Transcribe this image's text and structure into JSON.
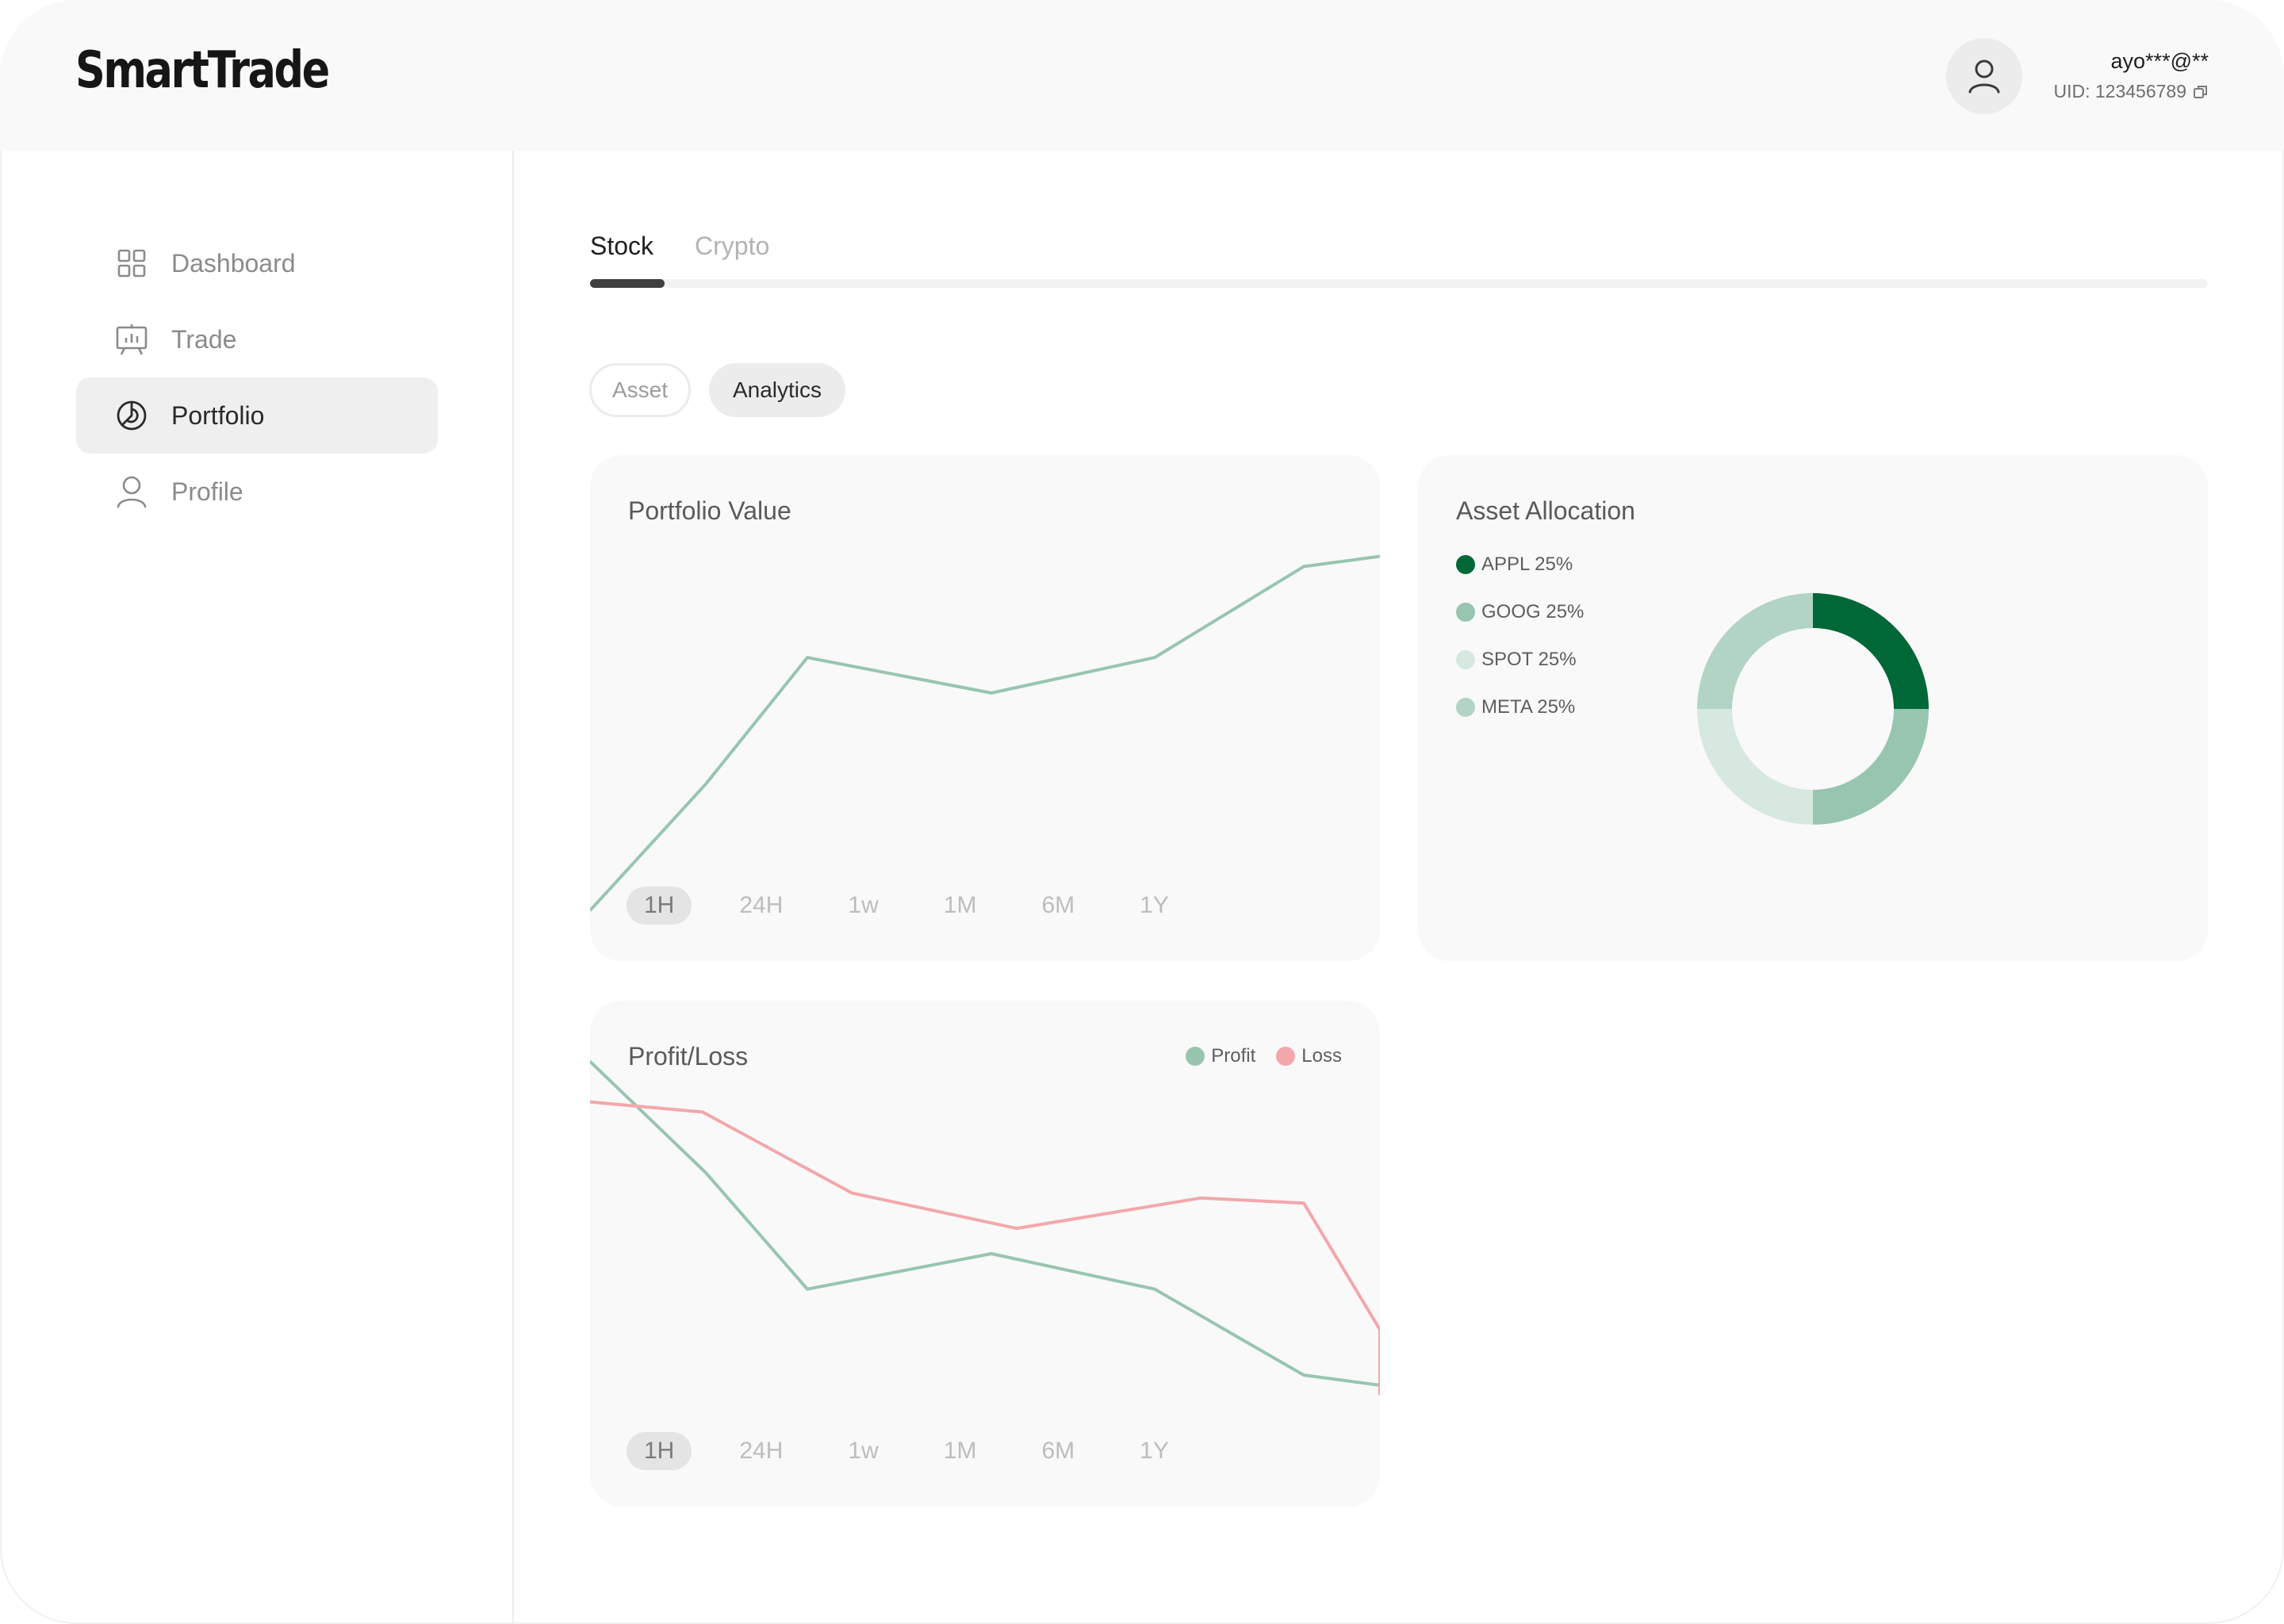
{
  "app": {
    "logo": "SmartTrade"
  },
  "user": {
    "email": "ayo***@**",
    "uid": "UID: 123456789"
  },
  "sidebar": {
    "items": [
      {
        "label": "Dashboard",
        "icon": "grid-icon",
        "active": false
      },
      {
        "label": "Trade",
        "icon": "chart-board-icon",
        "active": false
      },
      {
        "label": "Portfolio",
        "icon": "pie-chart-icon",
        "active": true
      },
      {
        "label": "Profile",
        "icon": "user-icon",
        "active": false
      }
    ]
  },
  "tabs": [
    {
      "label": "Stock",
      "active": true
    },
    {
      "label": "Crypto",
      "active": false
    }
  ],
  "view_toggle": [
    {
      "label": "Asset",
      "active": false
    },
    {
      "label": "Analytics",
      "active": true
    }
  ],
  "time_ranges": [
    "1H",
    "24H",
    "1w",
    "1M",
    "6M",
    "1Y"
  ],
  "selected_time_range": "1H",
  "colors": {
    "accent_dark_green": "#006837",
    "green_mid": "#98c5b0",
    "green_light": "#b2d4c4",
    "green_pale": "#d6e8df",
    "loss_pink": "#f4a7ab"
  },
  "portfolio_value": {
    "title": "Portfolio Value"
  },
  "asset_allocation": {
    "title": "Asset Allocation"
  },
  "profit_loss": {
    "title": "Profit/Loss"
  },
  "chart_data": [
    {
      "type": "line",
      "title": "Portfolio Value",
      "x": [
        0,
        1,
        2,
        3,
        4,
        5,
        6
      ],
      "series": [
        {
          "values": [
            10,
            35,
            60,
            53,
            60,
            78,
            80
          ],
          "color": "#98c5b0"
        }
      ],
      "ylim": [
        0,
        100
      ],
      "grid": false
    },
    {
      "type": "pie",
      "title": "Asset Allocation",
      "categories": [
        "APPL",
        "GOOG",
        "SPOT",
        "META"
      ],
      "labels": [
        "APPL 25%",
        "GOOG 25%",
        "SPOT 25%",
        "META 25%"
      ],
      "values": [
        25,
        25,
        25,
        25
      ],
      "colors": [
        "#006837",
        "#98c5b0",
        "#d6e8df",
        "#b2d4c4"
      ],
      "donut": true,
      "legend": "left"
    },
    {
      "type": "line",
      "title": "Profit/Loss",
      "x": [
        0,
        1,
        2,
        3,
        4,
        5,
        6,
        7
      ],
      "series": [
        {
          "name": "Profit",
          "values": [
            88,
            66,
            43,
            50,
            43,
            26,
            24,
            null
          ],
          "color": "#98c5b0"
        },
        {
          "name": "Loss",
          "values": [
            80,
            78,
            62,
            55,
            61,
            60,
            35,
            22
          ],
          "color": "#f4a7ab"
        }
      ],
      "ylim": [
        0,
        100
      ],
      "legend": "top-right",
      "grid": false
    }
  ]
}
